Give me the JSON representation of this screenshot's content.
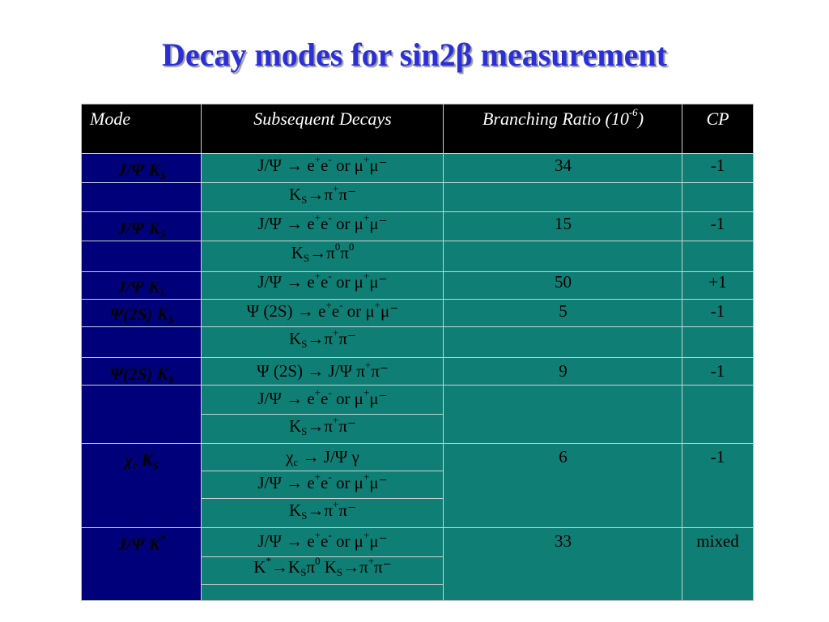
{
  "title": "Decay modes for sin2β measurement",
  "headers": {
    "mode": "Mode",
    "subsequent": "Subsequent Decays",
    "br": "Branching Ratio (10",
    "br_exp": "-6",
    "br_close": ")",
    "cp": "CP"
  },
  "rows": [
    {
      "mode": "J/Ψ K",
      "mode_sub": "S",
      "d1": "J/Ψ → e",
      "d1_s1": "+",
      "d1_m": "e",
      "d1_s2": "-",
      "d1_t": " or μ",
      "d1_s3": "+",
      "d1_e": "μ⁻",
      "d2": "K",
      "d2_sub": "S",
      "d2_t": "→π",
      "d2_s1": "+",
      "d2_e": "π⁻",
      "br": "34",
      "cp": "-1"
    },
    {
      "mode": "J/Ψ K",
      "mode_sub": "S",
      "d1": "J/Ψ → e",
      "d1_s1": "+",
      "d1_m": "e",
      "d1_s2": "-",
      "d1_t": " or μ",
      "d1_s3": "+",
      "d1_e": "μ⁻",
      "d2": "K",
      "d2_sub": "S",
      "d2_t": "→π",
      "d2_s1": "0",
      "d2_e": "π",
      "d2_s2": "0",
      "br": "15",
      "cp": "-1"
    },
    {
      "mode": "J/Ψ K",
      "mode_sub": "L",
      "d1": "J/Ψ → e",
      "d1_s1": "+",
      "d1_m": "e",
      "d1_s2": "-",
      "d1_t": " or μ",
      "d1_s3": "+",
      "d1_e": "μ⁻",
      "br": "50",
      "cp": "+1"
    },
    {
      "mode": "Ψ(2S) K",
      "mode_sub": "S",
      "d1": "Ψ (2S) → e",
      "d1_s1": "+",
      "d1_m": "e",
      "d1_s2": "-",
      "d1_t": " or μ",
      "d1_s3": "+",
      "d1_e": "μ⁻",
      "d2": "K",
      "d2_sub": "S",
      "d2_t": "→π",
      "d2_s1": "+",
      "d2_e": "π⁻",
      "br": "5",
      "cp": "-1"
    },
    {
      "mode": "Ψ(2S) K",
      "mode_sub": "S",
      "d0": "Ψ (2S) → J/Ψ π",
      "d0_s": "+",
      "d0_e": "π⁻",
      "d1": "J/Ψ → e",
      "d1_s1": "+",
      "d1_m": "e",
      "d1_s2": "-",
      "d1_t": " or μ",
      "d1_s3": "+",
      "d1_e": "μ⁻",
      "d2": "K",
      "d2_sub": "S",
      "d2_t": "→π",
      "d2_s1": "+",
      "d2_e": "π⁻",
      "br": "9",
      "cp": "-1"
    },
    {
      "mode": "χ",
      "mode_sub0": "c",
      "mode_k": " K",
      "mode_sub": "S",
      "d0": "χ",
      "d0_sub": "c",
      "d0_t": " → J/Ψ γ",
      "d1": "J/Ψ → e",
      "d1_s1": "+",
      "d1_m": "e",
      "d1_s2": "-",
      "d1_t": " or μ",
      "d1_s3": "+",
      "d1_e": "μ⁻",
      "d2": "K",
      "d2_sub": "S",
      "d2_t": "→π",
      "d2_s1": "+",
      "d2_e": "π⁻",
      "br": "6",
      "cp": "-1"
    },
    {
      "mode": "J/Ψ K",
      "mode_sup": "*",
      "d1": "J/Ψ → e",
      "d1_s1": "+",
      "d1_m": "e",
      "d1_s2": "-",
      "d1_t": " or μ",
      "d1_s3": "+",
      "d1_e": "μ⁻",
      "d2": "K",
      "d2_sup": "*",
      "d2_t": "→K",
      "d2_sub": "S",
      "d2_t2": "π",
      "d2_s0": "0",
      "d2_t3": " K",
      "d2_sub2": "S",
      "d2_t4": "→π",
      "d2_s1": "+",
      "d2_e": "π⁻",
      "br": "33",
      "cp": "mixed"
    }
  ]
}
